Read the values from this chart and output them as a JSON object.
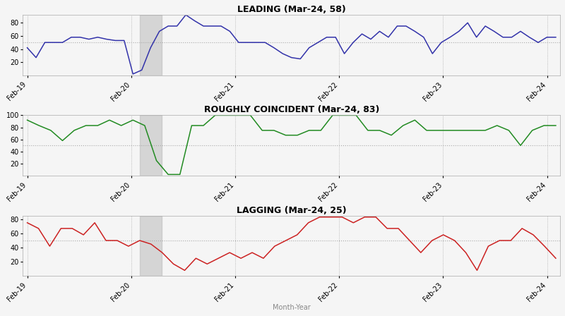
{
  "leading": {
    "title": "LEADING (Mar-24, 58)",
    "color": "#3333aa",
    "ylim": [
      0,
      92
    ],
    "yticks": [
      20,
      40,
      60,
      80
    ],
    "hline": 50,
    "values": [
      42,
      27,
      50,
      50,
      50,
      58,
      58,
      55,
      58,
      55,
      53,
      53,
      2,
      8,
      42,
      67,
      75,
      75,
      92,
      83,
      75,
      75,
      75,
      67,
      50,
      50,
      50,
      50,
      42,
      33,
      27,
      25,
      42,
      50,
      58,
      58,
      33,
      50,
      63,
      55,
      67,
      58,
      75,
      75,
      67,
      58,
      33,
      50,
      58,
      67,
      80,
      58,
      75,
      67,
      58,
      58,
      67,
      58,
      50,
      58,
      58
    ]
  },
  "coincident": {
    "title": "ROUGHLY COINCIDENT (Mar-24, 83)",
    "color": "#228B22",
    "ylim": [
      0,
      100
    ],
    "yticks": [
      20,
      40,
      60,
      80,
      100
    ],
    "hline": 50,
    "values": [
      92,
      83,
      75,
      58,
      75,
      83,
      83,
      92,
      83,
      92,
      83,
      25,
      2,
      2,
      83,
      83,
      100,
      100,
      100,
      100,
      75,
      75,
      67,
      67,
      75,
      75,
      100,
      100,
      100,
      75,
      75,
      67,
      83,
      92,
      75,
      75,
      75,
      75,
      75,
      75,
      83,
      75,
      50,
      75,
      83,
      83
    ]
  },
  "lagging": {
    "title": "LAGGING (Mar-24, 25)",
    "color": "#cc2222",
    "ylim": [
      0,
      85
    ],
    "yticks": [
      20,
      40,
      60,
      80
    ],
    "hline": 50,
    "values": [
      75,
      67,
      42,
      67,
      67,
      58,
      75,
      50,
      50,
      42,
      50,
      45,
      33,
      17,
      8,
      25,
      17,
      25,
      33,
      25,
      33,
      25,
      42,
      50,
      58,
      75,
      83,
      83,
      83,
      75,
      83,
      83,
      67,
      67,
      50,
      33,
      50,
      58,
      50,
      33,
      8,
      42,
      50,
      50,
      67,
      58,
      42,
      25
    ]
  },
  "xtick_labels": [
    "Feb-19",
    "Feb-20",
    "Feb-21",
    "Feb-22",
    "Feb-23",
    "Feb-24"
  ],
  "xlabel": "Month-Year",
  "background_color": "#f5f5f5",
  "shade_color": "#b0b0b0"
}
